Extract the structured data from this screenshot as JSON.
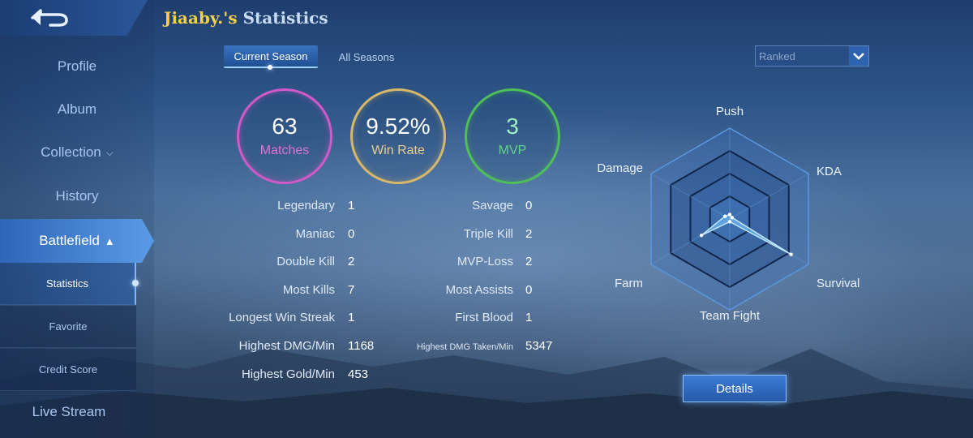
{
  "header": {
    "player_name": "Jiaaby.'s",
    "title_rest": "Statistics",
    "back_icon": "back-arrow-icon"
  },
  "sidebar": {
    "items": [
      {
        "label": "Profile"
      },
      {
        "label": "Album"
      },
      {
        "label": "Collection"
      },
      {
        "label": "History"
      },
      {
        "label": "Battlefield"
      },
      {
        "label": "Live Stream"
      }
    ],
    "subitems": [
      {
        "label": "Statistics"
      },
      {
        "label": "Favorite"
      },
      {
        "label": "Credit Score"
      }
    ]
  },
  "tabs": [
    {
      "label": "Current Season"
    },
    {
      "label": "All Seasons"
    }
  ],
  "mode": {
    "selected": "Ranked"
  },
  "summary": {
    "matches": {
      "value": "63",
      "label": "Matches",
      "color": "#d259c8"
    },
    "winrate": {
      "value": "9.52%",
      "label": "Win Rate",
      "color": "#d6b86a"
    },
    "mvp": {
      "value": "3",
      "label": "MVP",
      "color": "#4fbf58"
    }
  },
  "stats_left": [
    {
      "label": "Legendary",
      "value": "1"
    },
    {
      "label": "Maniac",
      "value": "0"
    },
    {
      "label": "Double Kill",
      "value": "2"
    },
    {
      "label": "Most Kills",
      "value": "7"
    },
    {
      "label": "Longest Win Streak",
      "value": "1"
    },
    {
      "label": "Highest DMG/Min",
      "value": "1168"
    },
    {
      "label": "Highest Gold/Min",
      "value": "453"
    }
  ],
  "stats_right": [
    {
      "label": "Savage",
      "value": "0"
    },
    {
      "label": "Triple Kill",
      "value": "2"
    },
    {
      "label": "MVP-Loss",
      "value": "2"
    },
    {
      "label": "Most Assists",
      "value": "0"
    },
    {
      "label": "First Blood",
      "value": "1"
    },
    {
      "label": "Highest DMG Taken/Min",
      "value": "5347"
    }
  ],
  "radar": {
    "axes": [
      "Push",
      "KDA",
      "Survival",
      "Team Fight",
      "Farm",
      "Damage"
    ],
    "values": [
      0.05,
      0.03,
      0.78,
      0.03,
      0.36,
      0.06
    ]
  },
  "details_button": {
    "label": "Details"
  }
}
